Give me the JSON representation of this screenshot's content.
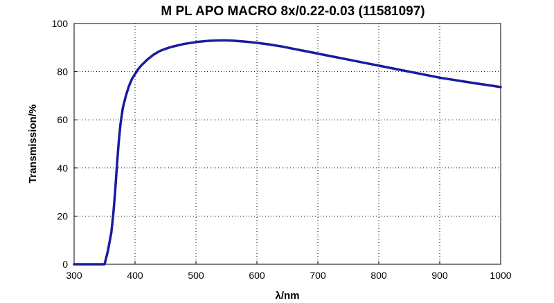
{
  "chart_data": {
    "type": "line",
    "title": "M PL APO MACRO 8x/0.22-0.03 (11581097)",
    "xlabel": "λ/nm",
    "ylabel": "Transmission/%",
    "xlim": [
      300,
      1000
    ],
    "ylim": [
      0,
      100
    ],
    "x_ticks": [
      300,
      400,
      500,
      600,
      700,
      800,
      900,
      1000
    ],
    "y_ticks": [
      0,
      20,
      40,
      60,
      80,
      100
    ],
    "grid": true,
    "series": [
      {
        "color": "#1a1aa0",
        "x": [
          300,
          350,
          352,
          355,
          358,
          361,
          364,
          367,
          370,
          373,
          376,
          380,
          385,
          390,
          395,
          400,
          405,
          410,
          420,
          430,
          440,
          450,
          460,
          480,
          500,
          520,
          540,
          550,
          560,
          580,
          600,
          620,
          640,
          660,
          680,
          700,
          720,
          740,
          760,
          780,
          800,
          820,
          840,
          860,
          880,
          900,
          920,
          940,
          960,
          980,
          1000
        ],
        "y": [
          0,
          0,
          2,
          5,
          9,
          13,
          20,
          29,
          40,
          50,
          58,
          65,
          70,
          74,
          77,
          79,
          81,
          82.5,
          85,
          87,
          88.5,
          89.5,
          90.3,
          91.5,
          92.3,
          92.8,
          93,
          93,
          92.9,
          92.5,
          92,
          91.3,
          90.5,
          89.5,
          88.5,
          87.5,
          86.5,
          85.5,
          84.5,
          83.5,
          82.5,
          81.5,
          80.5,
          79.5,
          78.5,
          77.5,
          76.7,
          75.9,
          75.1,
          74.4,
          73.6
        ]
      }
    ]
  }
}
